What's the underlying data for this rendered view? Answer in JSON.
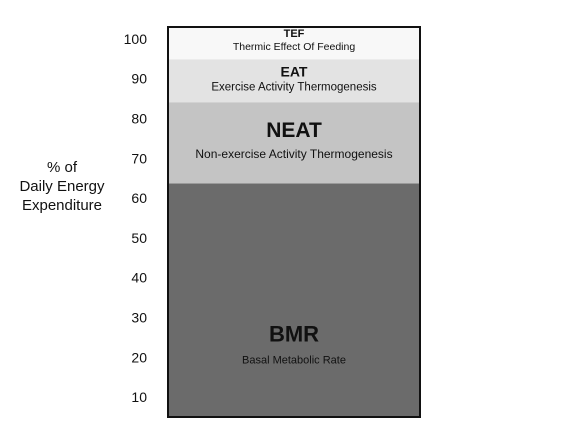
{
  "chart_data": {
    "type": "bar",
    "stacked": true,
    "ylabel_lines": [
      "% of",
      "Daily Energy",
      "Expenditure"
    ],
    "ylim": [
      5,
      103
    ],
    "yticks": [
      10,
      20,
      30,
      40,
      50,
      60,
      70,
      80,
      90,
      100
    ],
    "grid": false,
    "legend": "none",
    "segments": [
      {
        "title": "BMR",
        "subtitle": "Basal Metabolic Rate",
        "bottom": 5,
        "top": 63.7,
        "color": "#6b6b6b"
      },
      {
        "title": "NEAT",
        "subtitle": "Non-exercise Activity Thermogenesis",
        "bottom": 63.7,
        "top": 84.1,
        "color": "#c4c4c4"
      },
      {
        "title": "EAT",
        "subtitle": "Exercise Activity Thermogenesis",
        "bottom": 84.1,
        "top": 94.9,
        "color": "#e3e3e3"
      },
      {
        "title": "TEF",
        "subtitle": "Thermic Effect Of Feeding",
        "bottom": 94.9,
        "top": 103,
        "color": "#f8f8f8"
      }
    ],
    "outline_color": "#111111"
  }
}
